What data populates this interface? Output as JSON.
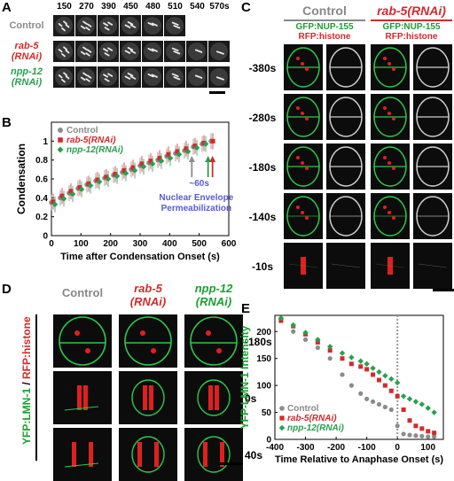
{
  "panelA": {
    "label": "A",
    "times": [
      "150",
      "270",
      "390",
      "450",
      "480",
      "510",
      "540",
      "570s"
    ],
    "rows": [
      {
        "label": "Control",
        "color": "#8c8c8c"
      },
      {
        "label": "rab-5\n(RNAi)",
        "color": "#d42a2a"
      },
      {
        "label": "npp-12\n(RNAi)",
        "color": "#28a050"
      }
    ]
  },
  "panelB": {
    "label": "B",
    "annotation_arrow": "~60s",
    "annotation_text": "Nuclear Envelope Permeabilization",
    "chart_data": {
      "type": "scatter",
      "xlabel": "Time after Condensation Onset (s)",
      "ylabel": "Condensation",
      "xlim": [
        0,
        600
      ],
      "ylim": [
        0,
        1.2
      ],
      "xticks": [
        "0",
        "100",
        "200",
        "300",
        "400",
        "500",
        "600"
      ],
      "yticks": [
        "0",
        "0.2",
        "0.4",
        "0.6",
        "0.8",
        "1"
      ],
      "series": [
        {
          "name": "Control",
          "color": "#8c8c8c",
          "x": [
            0,
            30,
            60,
            90,
            120,
            150,
            180,
            210,
            240,
            270,
            300,
            330,
            360,
            390,
            420,
            450,
            480,
            510,
            540
          ],
          "y": [
            0.35,
            0.4,
            0.45,
            0.5,
            0.54,
            0.58,
            0.61,
            0.64,
            0.67,
            0.7,
            0.74,
            0.77,
            0.8,
            0.84,
            0.87,
            0.9,
            0.94,
            0.97,
            1.0
          ]
        },
        {
          "name": "rab-5(RNAi)",
          "color": "#d42a2a",
          "x": [
            0,
            30,
            60,
            90,
            120,
            150,
            180,
            210,
            240,
            270,
            300,
            330,
            360,
            390,
            420,
            450,
            480,
            510,
            540
          ],
          "y": [
            0.36,
            0.42,
            0.47,
            0.51,
            0.55,
            0.59,
            0.62,
            0.65,
            0.69,
            0.72,
            0.76,
            0.79,
            0.82,
            0.86,
            0.89,
            0.92,
            0.95,
            0.98,
            1.0
          ]
        },
        {
          "name": "npp-12(RNAi)",
          "color": "#28a050",
          "x": [
            0,
            30,
            60,
            90,
            120,
            150,
            180,
            210,
            240,
            270,
            300,
            330,
            360,
            390,
            420,
            450,
            480,
            510
          ],
          "y": [
            0.33,
            0.39,
            0.44,
            0.49,
            0.53,
            0.57,
            0.6,
            0.63,
            0.66,
            0.69,
            0.73,
            0.76,
            0.79,
            0.82,
            0.86,
            0.89,
            0.93,
            0.97
          ]
        }
      ]
    }
  },
  "panelC": {
    "label": "C",
    "header_control": "Control",
    "header_rab5": "rab-5(RNAi)",
    "channel_green": "GFP:NUP-155",
    "channel_red": "RFP:histone",
    "times": [
      "-380s",
      "-280s",
      "-180s",
      "-140s",
      "-10s"
    ]
  },
  "panelD": {
    "label": "D",
    "side_label_green": "YFP:LMN-1",
    "side_label_sep": " / ",
    "side_label_red": "RFP:histone",
    "col_control": "Control",
    "col_rab5_a": "rab-5",
    "col_rab5_b": "(RNAi)",
    "col_npp12_a": "npp-12",
    "col_npp12_b": "(RNAi)",
    "times": [
      "-180s",
      "0s",
      "40s"
    ]
  },
  "panelE": {
    "label": "E",
    "chart_data": {
      "type": "scatter",
      "xlabel": "Time Relative to Anaphase Onset (s)",
      "ylabel": "YFP-LMN-1 Intensity",
      "xlim": [
        -400,
        150
      ],
      "ylim": [
        0,
        230
      ],
      "xticks": [
        "-400",
        "-300",
        "-200",
        "-100",
        "0",
        "100"
      ],
      "yticks": [
        "0",
        "50",
        "100",
        "150",
        "200"
      ],
      "legend_position": "bottom-left",
      "series": [
        {
          "name": "Control",
          "color": "#8c8c8c",
          "x": [
            -380,
            -340,
            -300,
            -260,
            -220,
            -180,
            -150,
            -120,
            -100,
            -80,
            -60,
            -40,
            -20,
            0,
            20,
            40,
            60,
            80,
            100,
            120
          ],
          "y": [
            222,
            200,
            185,
            170,
            150,
            120,
            100,
            85,
            75,
            70,
            65,
            60,
            55,
            25,
            10,
            8,
            7,
            6,
            5,
            5
          ]
        },
        {
          "name": "rab-5(RNAi)",
          "color": "#d42a2a",
          "x": [
            -380,
            -340,
            -300,
            -260,
            -220,
            -180,
            -150,
            -120,
            -100,
            -80,
            -60,
            -40,
            -20,
            0,
            20,
            40,
            60,
            80,
            100,
            120
          ],
          "y": [
            220,
            210,
            195,
            180,
            165,
            150,
            140,
            135,
            130,
            120,
            110,
            100,
            90,
            80,
            55,
            35,
            25,
            20,
            15,
            12
          ]
        },
        {
          "name": "npp-12(RNAi)",
          "color": "#28a050",
          "x": [
            -380,
            -340,
            -300,
            -260,
            -220,
            -180,
            -150,
            -120,
            -100,
            -80,
            -60,
            -40,
            -20,
            0,
            20,
            40,
            60,
            80,
            100,
            120
          ],
          "y": [
            225,
            212,
            198,
            185,
            172,
            160,
            152,
            145,
            140,
            132,
            125,
            118,
            112,
            105,
            80,
            75,
            70,
            65,
            58,
            50
          ]
        }
      ]
    }
  }
}
